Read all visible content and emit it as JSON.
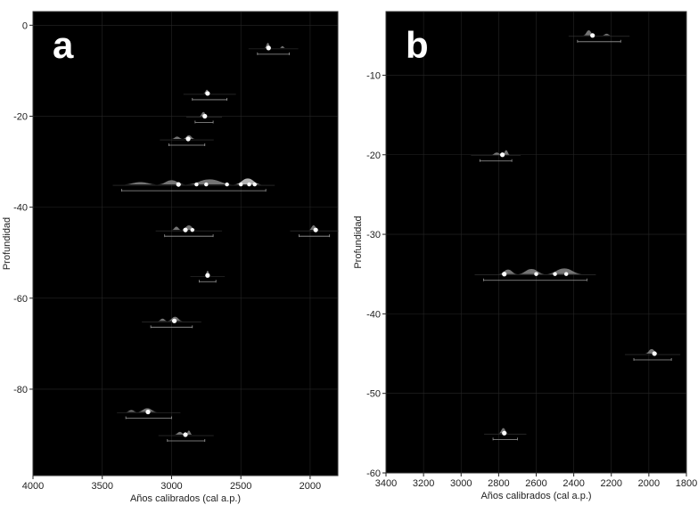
{
  "chart_data": [
    {
      "type": "scatter",
      "panel_label": "a",
      "xlabel": "Años calibrados (cal a.p.)",
      "ylabel": "Profundidad",
      "xlim": [
        4000,
        1800
      ],
      "ylim": [
        -99,
        3
      ],
      "x_ticks": [
        4000,
        3500,
        3000,
        2500,
        2000
      ],
      "y_ticks": [
        0,
        -20,
        -40,
        -60,
        -80
      ],
      "grid": true,
      "background": "#000000",
      "colors": {
        "distribution": "#7a7a7a",
        "highlight": "#bdbdbd",
        "point": "#ffffff",
        "range": "#9a9a9a"
      },
      "samples": [
        {
          "depth": -5,
          "age": 2300,
          "range": [
            2380,
            2150
          ],
          "peaks": [
            [
              2330,
              2280,
              2.2
            ],
            [
              2220,
              2180,
              0.8
            ]
          ]
        },
        {
          "depth": -15,
          "age": 2740,
          "range": [
            2850,
            2600
          ],
          "peaks": [
            [
              2770,
              2720,
              1.6
            ]
          ]
        },
        {
          "depth": -20,
          "age": 2760,
          "range": [
            2830,
            2700
          ],
          "peaks": [
            [
              2800,
              2740,
              1.8
            ]
          ]
        },
        {
          "depth": -25,
          "age": 2880,
          "range": [
            3020,
            2760
          ],
          "peaks": [
            [
              3000,
              2920,
              1.0
            ],
            [
              2920,
              2830,
              1.6
            ]
          ]
        },
        {
          "depth": -35,
          "age": 2950,
          "range": [
            3360,
            2320
          ],
          "peaks": [
            [
              3350,
              3100,
              1.0
            ],
            [
              3100,
              2900,
              1.8
            ],
            [
              2900,
              2550,
              2.2
            ],
            [
              2550,
              2350,
              2.6
            ]
          ],
          "extra_points": [
            2820,
            2750,
            2600,
            2500,
            2440,
            2400
          ]
        },
        {
          "depth": -45,
          "age": 2900,
          "range": [
            3050,
            2700
          ],
          "peaks": [
            [
              3000,
              2930,
              1.4
            ],
            [
              2930,
              2820,
              2.0
            ]
          ],
          "extra_points": [
            2850
          ]
        },
        {
          "depth": -45,
          "age": 1960,
          "range": [
            2080,
            1860
          ],
          "peaks": [
            [
              2010,
              1940,
              2.0
            ]
          ]
        },
        {
          "depth": -55,
          "age": 2740,
          "range": [
            2800,
            2680
          ],
          "peaks": [
            [
              2760,
              2720,
              2.0
            ]
          ]
        },
        {
          "depth": -65,
          "age": 2980,
          "range": [
            3150,
            2850
          ],
          "peaks": [
            [
              3100,
              3030,
              1.0
            ],
            [
              3030,
              2920,
              1.8
            ]
          ]
        },
        {
          "depth": -85,
          "age": 3170,
          "range": [
            3330,
            3000
          ],
          "peaks": [
            [
              3330,
              3250,
              0.8
            ],
            [
              3250,
              3100,
              1.6
            ]
          ]
        },
        {
          "depth": -90,
          "age": 2900,
          "range": [
            3030,
            2760
          ],
          "peaks": [
            [
              2980,
              2900,
              1.2
            ],
            [
              2900,
              2850,
              1.8
            ]
          ]
        }
      ]
    },
    {
      "type": "scatter",
      "panel_label": "b",
      "xlabel": "Años calibrados (cal a.p.)",
      "ylabel": "Profundidad",
      "xlim": [
        3400,
        1800
      ],
      "ylim": [
        -60,
        -2
      ],
      "x_ticks": [
        3400,
        3200,
        3000,
        2800,
        2600,
        2400,
        2200,
        2000,
        1800
      ],
      "y_ticks": [
        -10,
        -20,
        -30,
        -40,
        -50,
        -60
      ],
      "grid": true,
      "background": "#000000",
      "colors": {
        "distribution": "#7a7a7a",
        "highlight": "#bdbdbd",
        "point": "#ffffff",
        "range": "#9a9a9a"
      },
      "samples": [
        {
          "depth": -5,
          "age": 2300,
          "range": [
            2380,
            2150
          ],
          "peaks": [
            [
              2350,
              2290,
              1.8
            ],
            [
              2250,
              2200,
              0.6
            ]
          ]
        },
        {
          "depth": -20,
          "age": 2780,
          "range": [
            2900,
            2730
          ],
          "peaks": [
            [
              2840,
              2780,
              0.8
            ],
            [
              2780,
              2740,
              1.6
            ]
          ]
        },
        {
          "depth": -35,
          "age": 2770,
          "range": [
            2880,
            2330
          ],
          "peaks": [
            [
              2800,
              2700,
              1.6
            ],
            [
              2700,
              2550,
              1.8
            ],
            [
              2550,
              2350,
              2.0
            ]
          ],
          "extra_points": [
            2600,
            2500,
            2440
          ]
        },
        {
          "depth": -45,
          "age": 1970,
          "range": [
            2080,
            1880
          ],
          "peaks": [
            [
              2020,
              1950,
              1.6
            ]
          ]
        },
        {
          "depth": -55,
          "age": 2770,
          "range": [
            2830,
            2700
          ],
          "peaks": [
            [
              2800,
              2750,
              1.8
            ]
          ]
        }
      ]
    }
  ]
}
